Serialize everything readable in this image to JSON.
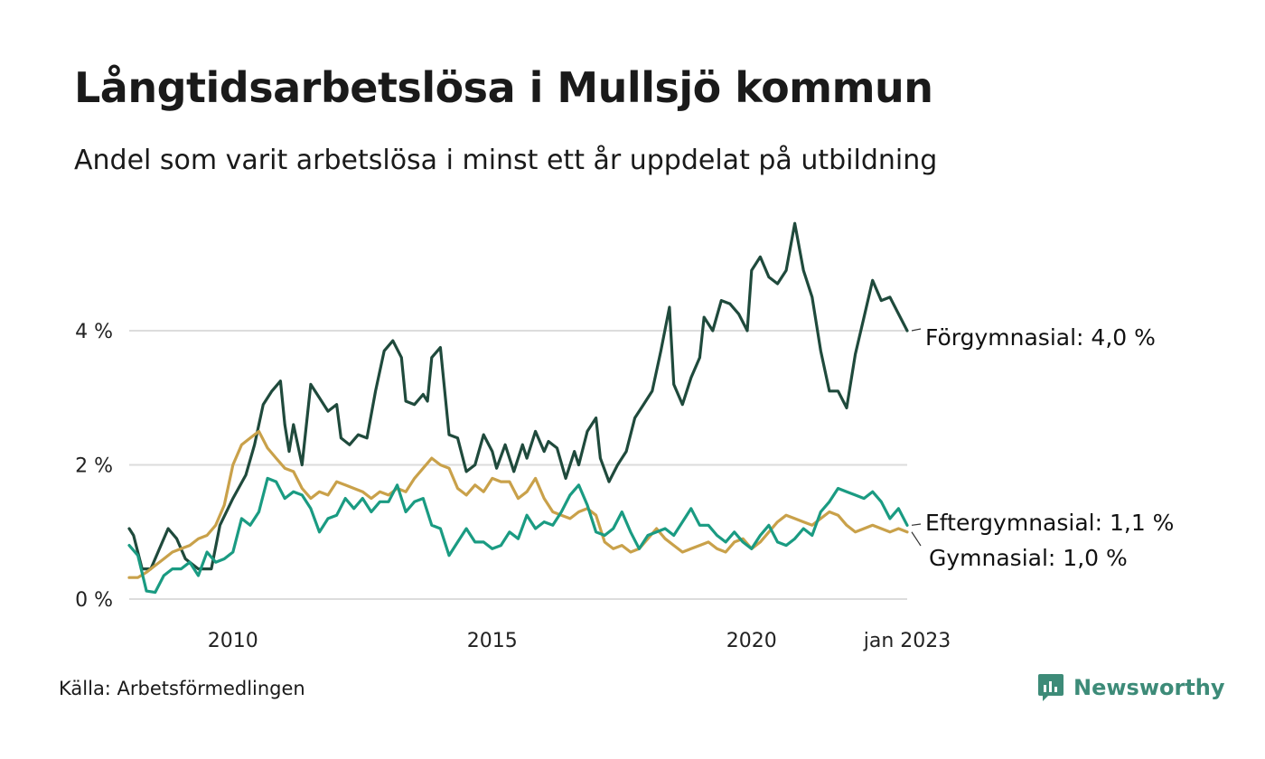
{
  "header": {
    "title": "Långtidsarbetslösa i Mullsjö kommun",
    "subtitle": "Andel som varit arbetslösa i minst ett år uppdelat på utbildning"
  },
  "footer": {
    "source": "Källa: Arbetsförmedlingen",
    "brand": "Newsworthy",
    "brand_color": "#3d8b78"
  },
  "chart_data": {
    "type": "line",
    "title": "Långtidsarbetslösa i Mullsjö kommun",
    "subtitle": "Andel som varit arbetslösa i minst ett år uppdelat på utbildning",
    "x_range": [
      "2008-01",
      "2023-01"
    ],
    "ylim": [
      0,
      5.6
    ],
    "y_ticks": [
      {
        "value": 0,
        "label": "0 %"
      },
      {
        "value": 2,
        "label": "2 %"
      },
      {
        "value": 4,
        "label": "4 %"
      }
    ],
    "x_ticks": [
      {
        "value": "2010-01",
        "label": "2010"
      },
      {
        "value": "2015-01",
        "label": "2015"
      },
      {
        "value": "2020-01",
        "label": "2020"
      },
      {
        "value": "2023-01",
        "label": "jan 2023"
      }
    ],
    "grid": "horizontal",
    "series": [
      {
        "name": "Förgymnasial",
        "end_label": "Förgymnasial: 4,0 %",
        "color": "#1f4a3c",
        "points": [
          [
            "2008-01",
            1.05
          ],
          [
            "2008-02",
            0.95
          ],
          [
            "2008-04",
            0.45
          ],
          [
            "2008-06",
            0.45
          ],
          [
            "2008-08",
            0.75
          ],
          [
            "2008-10",
            1.05
          ],
          [
            "2008-12",
            0.9
          ],
          [
            "2009-02",
            0.6
          ],
          [
            "2009-05",
            0.45
          ],
          [
            "2009-08",
            0.45
          ],
          [
            "2009-10",
            1.1
          ],
          [
            "2010-01",
            1.5
          ],
          [
            "2010-04",
            1.85
          ],
          [
            "2010-06",
            2.3
          ],
          [
            "2010-08",
            2.9
          ],
          [
            "2010-10",
            3.1
          ],
          [
            "2010-12",
            3.25
          ],
          [
            "2011-01",
            2.6
          ],
          [
            "2011-02",
            2.2
          ],
          [
            "2011-03",
            2.6
          ],
          [
            "2011-05",
            2.0
          ],
          [
            "2011-07",
            3.2
          ],
          [
            "2011-09",
            3.0
          ],
          [
            "2011-11",
            2.8
          ],
          [
            "2012-01",
            2.9
          ],
          [
            "2012-02",
            2.4
          ],
          [
            "2012-04",
            2.3
          ],
          [
            "2012-06",
            2.45
          ],
          [
            "2012-08",
            2.4
          ],
          [
            "2012-10",
            3.1
          ],
          [
            "2012-12",
            3.7
          ],
          [
            "2013-02",
            3.85
          ],
          [
            "2013-04",
            3.6
          ],
          [
            "2013-05",
            2.95
          ],
          [
            "2013-07",
            2.9
          ],
          [
            "2013-09",
            3.05
          ],
          [
            "2013-10",
            2.95
          ],
          [
            "2013-11",
            3.6
          ],
          [
            "2014-01",
            3.75
          ],
          [
            "2014-03",
            2.45
          ],
          [
            "2014-05",
            2.4
          ],
          [
            "2014-07",
            1.9
          ],
          [
            "2014-09",
            2.0
          ],
          [
            "2014-11",
            2.45
          ],
          [
            "2015-01",
            2.2
          ],
          [
            "2015-02",
            1.95
          ],
          [
            "2015-04",
            2.3
          ],
          [
            "2015-06",
            1.9
          ],
          [
            "2015-08",
            2.3
          ],
          [
            "2015-09",
            2.1
          ],
          [
            "2015-11",
            2.5
          ],
          [
            "2016-01",
            2.2
          ],
          [
            "2016-02",
            2.35
          ],
          [
            "2016-04",
            2.25
          ],
          [
            "2016-06",
            1.8
          ],
          [
            "2016-08",
            2.2
          ],
          [
            "2016-09",
            2.0
          ],
          [
            "2016-11",
            2.5
          ],
          [
            "2017-01",
            2.7
          ],
          [
            "2017-02",
            2.1
          ],
          [
            "2017-04",
            1.75
          ],
          [
            "2017-06",
            2.0
          ],
          [
            "2017-08",
            2.2
          ],
          [
            "2017-10",
            2.7
          ],
          [
            "2017-12",
            2.9
          ],
          [
            "2018-02",
            3.1
          ],
          [
            "2018-04",
            3.7
          ],
          [
            "2018-06",
            4.35
          ],
          [
            "2018-07",
            3.2
          ],
          [
            "2018-09",
            2.9
          ],
          [
            "2018-11",
            3.3
          ],
          [
            "2019-01",
            3.6
          ],
          [
            "2019-02",
            4.2
          ],
          [
            "2019-04",
            4.0
          ],
          [
            "2019-06",
            4.45
          ],
          [
            "2019-08",
            4.4
          ],
          [
            "2019-10",
            4.25
          ],
          [
            "2019-12",
            4.0
          ],
          [
            "2020-01",
            4.9
          ],
          [
            "2020-03",
            5.1
          ],
          [
            "2020-05",
            4.8
          ],
          [
            "2020-07",
            4.7
          ],
          [
            "2020-09",
            4.9
          ],
          [
            "2020-11",
            5.6
          ],
          [
            "2021-01",
            4.9
          ],
          [
            "2021-03",
            4.5
          ],
          [
            "2021-05",
            3.7
          ],
          [
            "2021-07",
            3.1
          ],
          [
            "2021-09",
            3.1
          ],
          [
            "2021-11",
            2.85
          ],
          [
            "2022-01",
            3.65
          ],
          [
            "2022-03",
            4.2
          ],
          [
            "2022-05",
            4.75
          ],
          [
            "2022-07",
            4.45
          ],
          [
            "2022-09",
            4.5
          ],
          [
            "2022-11",
            4.25
          ],
          [
            "2023-01",
            4.0
          ]
        ]
      },
      {
        "name": "Eftergymnasial",
        "end_label": "Eftergymnasial: 1,1 %",
        "color": "#1a9b82",
        "points": [
          [
            "2008-01",
            0.8
          ],
          [
            "2008-03",
            0.65
          ],
          [
            "2008-05",
            0.12
          ],
          [
            "2008-07",
            0.1
          ],
          [
            "2008-09",
            0.35
          ],
          [
            "2008-11",
            0.45
          ],
          [
            "2009-01",
            0.45
          ],
          [
            "2009-03",
            0.55
          ],
          [
            "2009-05",
            0.35
          ],
          [
            "2009-07",
            0.7
          ],
          [
            "2009-09",
            0.55
          ],
          [
            "2009-11",
            0.6
          ],
          [
            "2010-01",
            0.7
          ],
          [
            "2010-03",
            1.2
          ],
          [
            "2010-05",
            1.1
          ],
          [
            "2010-07",
            1.3
          ],
          [
            "2010-09",
            1.8
          ],
          [
            "2010-11",
            1.75
          ],
          [
            "2011-01",
            1.5
          ],
          [
            "2011-03",
            1.6
          ],
          [
            "2011-05",
            1.55
          ],
          [
            "2011-07",
            1.35
          ],
          [
            "2011-09",
            1.0
          ],
          [
            "2011-11",
            1.2
          ],
          [
            "2012-01",
            1.25
          ],
          [
            "2012-03",
            1.5
          ],
          [
            "2012-05",
            1.35
          ],
          [
            "2012-07",
            1.5
          ],
          [
            "2012-09",
            1.3
          ],
          [
            "2012-11",
            1.45
          ],
          [
            "2013-01",
            1.45
          ],
          [
            "2013-03",
            1.7
          ],
          [
            "2013-05",
            1.3
          ],
          [
            "2013-07",
            1.45
          ],
          [
            "2013-09",
            1.5
          ],
          [
            "2013-11",
            1.1
          ],
          [
            "2014-01",
            1.05
          ],
          [
            "2014-03",
            0.65
          ],
          [
            "2014-05",
            0.85
          ],
          [
            "2014-07",
            1.05
          ],
          [
            "2014-09",
            0.85
          ],
          [
            "2014-11",
            0.85
          ],
          [
            "2015-01",
            0.75
          ],
          [
            "2015-03",
            0.8
          ],
          [
            "2015-05",
            1.0
          ],
          [
            "2015-07",
            0.9
          ],
          [
            "2015-09",
            1.25
          ],
          [
            "2015-11",
            1.05
          ],
          [
            "2016-01",
            1.15
          ],
          [
            "2016-03",
            1.1
          ],
          [
            "2016-05",
            1.3
          ],
          [
            "2016-07",
            1.55
          ],
          [
            "2016-09",
            1.7
          ],
          [
            "2016-11",
            1.4
          ],
          [
            "2017-01",
            1.0
          ],
          [
            "2017-03",
            0.95
          ],
          [
            "2017-05",
            1.05
          ],
          [
            "2017-07",
            1.3
          ],
          [
            "2017-09",
            1.0
          ],
          [
            "2017-11",
            0.75
          ],
          [
            "2018-01",
            0.95
          ],
          [
            "2018-03",
            1.0
          ],
          [
            "2018-05",
            1.05
          ],
          [
            "2018-07",
            0.95
          ],
          [
            "2018-09",
            1.15
          ],
          [
            "2018-11",
            1.35
          ],
          [
            "2019-01",
            1.1
          ],
          [
            "2019-03",
            1.1
          ],
          [
            "2019-05",
            0.95
          ],
          [
            "2019-07",
            0.85
          ],
          [
            "2019-09",
            1.0
          ],
          [
            "2019-11",
            0.85
          ],
          [
            "2020-01",
            0.75
          ],
          [
            "2020-03",
            0.95
          ],
          [
            "2020-05",
            1.1
          ],
          [
            "2020-07",
            0.85
          ],
          [
            "2020-09",
            0.8
          ],
          [
            "2020-11",
            0.9
          ],
          [
            "2021-01",
            1.05
          ],
          [
            "2021-03",
            0.95
          ],
          [
            "2021-05",
            1.3
          ],
          [
            "2021-07",
            1.45
          ],
          [
            "2021-09",
            1.65
          ],
          [
            "2021-11",
            1.6
          ],
          [
            "2022-01",
            1.55
          ],
          [
            "2022-03",
            1.5
          ],
          [
            "2022-05",
            1.6
          ],
          [
            "2022-07",
            1.45
          ],
          [
            "2022-09",
            1.2
          ],
          [
            "2022-11",
            1.35
          ],
          [
            "2023-01",
            1.1
          ]
        ]
      },
      {
        "name": "Gymnasial",
        "end_label": "Gymnasial: 1,0 %",
        "color": "#c9a14a",
        "points": [
          [
            "2008-01",
            0.32
          ],
          [
            "2008-03",
            0.32
          ],
          [
            "2008-05",
            0.4
          ],
          [
            "2008-07",
            0.5
          ],
          [
            "2008-09",
            0.6
          ],
          [
            "2008-11",
            0.7
          ],
          [
            "2009-01",
            0.75
          ],
          [
            "2009-03",
            0.8
          ],
          [
            "2009-05",
            0.9
          ],
          [
            "2009-07",
            0.95
          ],
          [
            "2009-09",
            1.1
          ],
          [
            "2009-11",
            1.4
          ],
          [
            "2010-01",
            2.0
          ],
          [
            "2010-03",
            2.3
          ],
          [
            "2010-05",
            2.4
          ],
          [
            "2010-07",
            2.5
          ],
          [
            "2010-09",
            2.25
          ],
          [
            "2010-11",
            2.1
          ],
          [
            "2011-01",
            1.95
          ],
          [
            "2011-03",
            1.9
          ],
          [
            "2011-05",
            1.65
          ],
          [
            "2011-07",
            1.5
          ],
          [
            "2011-09",
            1.6
          ],
          [
            "2011-11",
            1.55
          ],
          [
            "2012-01",
            1.75
          ],
          [
            "2012-03",
            1.7
          ],
          [
            "2012-05",
            1.65
          ],
          [
            "2012-07",
            1.6
          ],
          [
            "2012-09",
            1.5
          ],
          [
            "2012-11",
            1.6
          ],
          [
            "2013-01",
            1.55
          ],
          [
            "2013-03",
            1.65
          ],
          [
            "2013-05",
            1.6
          ],
          [
            "2013-07",
            1.8
          ],
          [
            "2013-09",
            1.95
          ],
          [
            "2013-11",
            2.1
          ],
          [
            "2014-01",
            2.0
          ],
          [
            "2014-03",
            1.95
          ],
          [
            "2014-05",
            1.65
          ],
          [
            "2014-07",
            1.55
          ],
          [
            "2014-09",
            1.7
          ],
          [
            "2014-11",
            1.6
          ],
          [
            "2015-01",
            1.8
          ],
          [
            "2015-03",
            1.75
          ],
          [
            "2015-05",
            1.75
          ],
          [
            "2015-07",
            1.5
          ],
          [
            "2015-09",
            1.6
          ],
          [
            "2015-11",
            1.8
          ],
          [
            "2016-01",
            1.5
          ],
          [
            "2016-03",
            1.3
          ],
          [
            "2016-05",
            1.25
          ],
          [
            "2016-07",
            1.2
          ],
          [
            "2016-09",
            1.3
          ],
          [
            "2016-11",
            1.35
          ],
          [
            "2017-01",
            1.25
          ],
          [
            "2017-03",
            0.85
          ],
          [
            "2017-05",
            0.75
          ],
          [
            "2017-07",
            0.8
          ],
          [
            "2017-09",
            0.7
          ],
          [
            "2017-11",
            0.75
          ],
          [
            "2018-01",
            0.9
          ],
          [
            "2018-03",
            1.05
          ],
          [
            "2018-05",
            0.9
          ],
          [
            "2018-07",
            0.8
          ],
          [
            "2018-09",
            0.7
          ],
          [
            "2018-11",
            0.75
          ],
          [
            "2019-01",
            0.8
          ],
          [
            "2019-03",
            0.85
          ],
          [
            "2019-05",
            0.75
          ],
          [
            "2019-07",
            0.7
          ],
          [
            "2019-09",
            0.85
          ],
          [
            "2019-11",
            0.9
          ],
          [
            "2020-01",
            0.75
          ],
          [
            "2020-03",
            0.85
          ],
          [
            "2020-05",
            1.0
          ],
          [
            "2020-07",
            1.15
          ],
          [
            "2020-09",
            1.25
          ],
          [
            "2020-11",
            1.2
          ],
          [
            "2021-01",
            1.15
          ],
          [
            "2021-03",
            1.1
          ],
          [
            "2021-05",
            1.2
          ],
          [
            "2021-07",
            1.3
          ],
          [
            "2021-09",
            1.25
          ],
          [
            "2021-11",
            1.1
          ],
          [
            "2022-01",
            1.0
          ],
          [
            "2022-03",
            1.05
          ],
          [
            "2022-05",
            1.1
          ],
          [
            "2022-07",
            1.05
          ],
          [
            "2022-09",
            1.0
          ],
          [
            "2022-11",
            1.05
          ],
          [
            "2023-01",
            1.0
          ]
        ]
      }
    ]
  }
}
